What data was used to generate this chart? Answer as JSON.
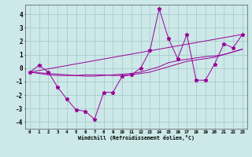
{
  "xlabel": "Windchill (Refroidissement éolien,°C)",
  "background_color": "#cce8e8",
  "grid_color": "#aacccc",
  "line_color": "#990099",
  "xlim": [
    -0.5,
    23.5
  ],
  "ylim": [
    -4.5,
    4.7
  ],
  "xticks": [
    0,
    1,
    2,
    3,
    4,
    5,
    6,
    7,
    8,
    9,
    10,
    11,
    12,
    13,
    14,
    15,
    16,
    17,
    18,
    19,
    20,
    21,
    22,
    23
  ],
  "yticks": [
    -4,
    -3,
    -2,
    -1,
    0,
    1,
    2,
    3,
    4
  ],
  "line1_x": [
    0,
    1,
    2,
    3,
    4,
    5,
    6,
    7,
    8,
    9,
    10,
    11,
    12,
    13,
    14,
    15,
    16,
    17,
    18,
    19,
    20,
    21,
    22,
    23
  ],
  "line1_y": [
    -0.3,
    0.2,
    -0.3,
    -1.4,
    -2.3,
    -3.1,
    -3.2,
    -3.8,
    -1.8,
    -1.8,
    -0.6,
    -0.5,
    0.0,
    1.3,
    4.4,
    2.2,
    0.7,
    2.5,
    -0.9,
    -0.9,
    0.3,
    1.8,
    1.5,
    2.5
  ],
  "line2_x": [
    0,
    1,
    2,
    3,
    4,
    5,
    6,
    7,
    8,
    9,
    10,
    11,
    12,
    13,
    14,
    15,
    16,
    17,
    18,
    19,
    20,
    21,
    22,
    23
  ],
  "line2_y": [
    -0.3,
    -0.4,
    -0.5,
    -0.55,
    -0.55,
    -0.55,
    -0.5,
    -0.5,
    -0.5,
    -0.55,
    -0.55,
    -0.5,
    -0.4,
    -0.3,
    -0.1,
    0.1,
    0.3,
    0.5,
    0.6,
    0.7,
    0.8,
    1.0,
    1.2,
    1.4
  ],
  "line3_x": [
    0,
    23
  ],
  "line3_y": [
    -0.3,
    2.5
  ],
  "line4_x": [
    0,
    1,
    2,
    3,
    4,
    5,
    6,
    7,
    8,
    9,
    10,
    11,
    12,
    13,
    14,
    15,
    16,
    17,
    18,
    19,
    20,
    21,
    22,
    23
  ],
  "line4_y": [
    -0.3,
    -0.35,
    -0.4,
    -0.45,
    -0.5,
    -0.55,
    -0.6,
    -0.6,
    -0.55,
    -0.5,
    -0.45,
    -0.4,
    -0.3,
    -0.1,
    0.1,
    0.4,
    0.55,
    0.65,
    0.75,
    0.85,
    0.9,
    1.0,
    1.2,
    1.4
  ]
}
